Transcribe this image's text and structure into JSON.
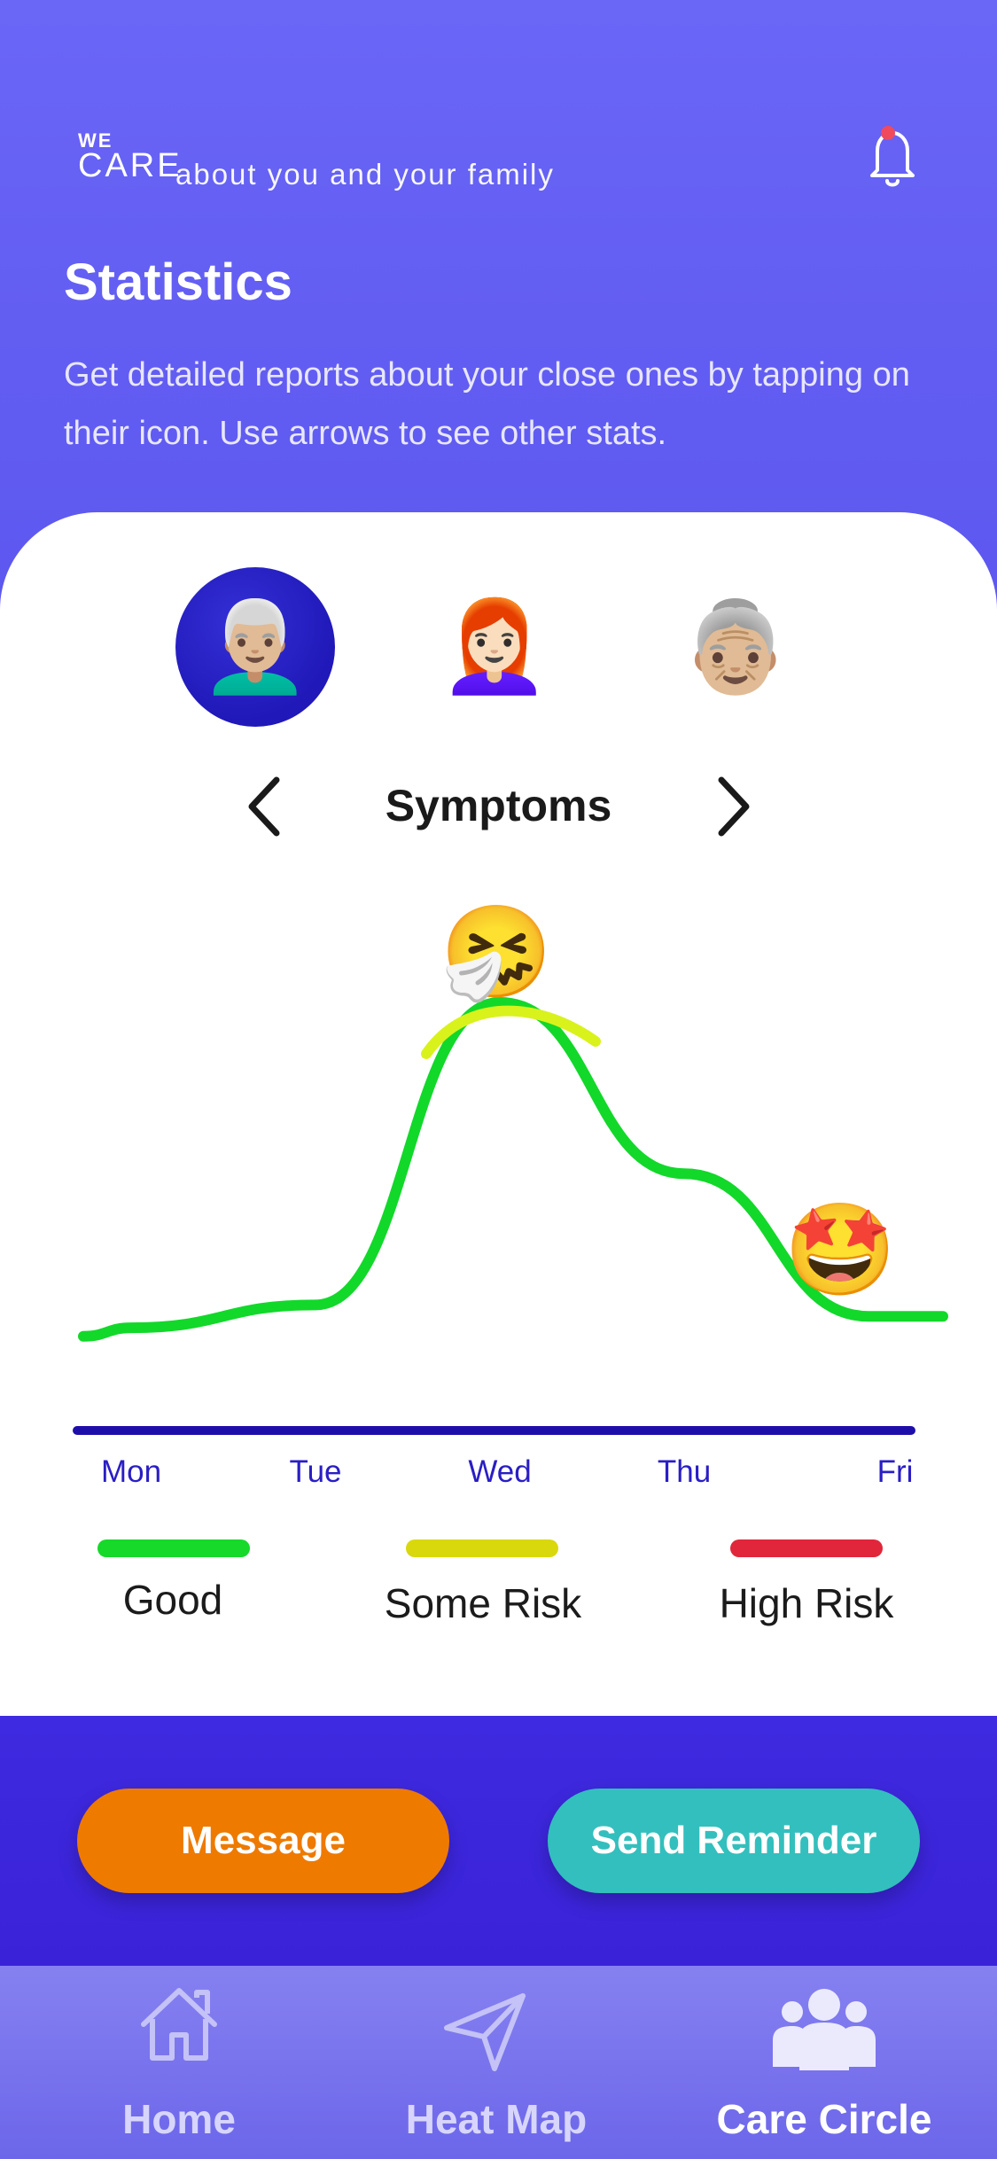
{
  "app": {
    "brand_top": "WE",
    "brand_bottom": "CARE",
    "tagline": "about you and your family"
  },
  "page": {
    "title": "Statistics",
    "description": "Get detailed reports about your close ones by tapping on their icon. Use arrows to see other stats."
  },
  "members": [
    {
      "emoji": "👨🏼‍🦳",
      "selected": true
    },
    {
      "emoji": "👩🏻‍🦰",
      "selected": false
    },
    {
      "emoji": "👵🏼",
      "selected": false
    }
  ],
  "stats": {
    "title": "Symptoms"
  },
  "chart_data": {
    "type": "line",
    "categories": [
      "Mon",
      "Tue",
      "Wed",
      "Thu",
      "Fri"
    ],
    "x_positions": [
      0,
      1,
      2,
      3,
      4
    ],
    "series": [
      {
        "values": [
          0.18,
          0.22,
          0.75,
          0.45,
          0.2
        ],
        "segment_colors": [
          "#12d82a",
          "#d9f21c",
          "#12d82a"
        ]
      }
    ],
    "markers": [
      {
        "x": "Wed",
        "emoji": "🤧"
      },
      {
        "x": "Fri",
        "emoji": "🤩"
      }
    ],
    "ylim": [
      0,
      1
    ],
    "grid": false,
    "legend": [
      {
        "label": "Good",
        "color": "#16d92a"
      },
      {
        "label": "Some Risk",
        "color": "#d9d80c"
      },
      {
        "label": "High Risk",
        "color": "#e1263b"
      }
    ]
  },
  "actions": {
    "message_label": "Message",
    "reminder_label": "Send Reminder",
    "message_color": "#ee7a00",
    "reminder_color": "#33bfbd"
  },
  "nav": {
    "items": [
      {
        "label": "Home",
        "icon": "home-icon",
        "active": false
      },
      {
        "label": "Heat Map",
        "icon": "send-icon",
        "active": false
      },
      {
        "label": "Care Circle",
        "icon": "group-icon",
        "active": true
      }
    ]
  }
}
